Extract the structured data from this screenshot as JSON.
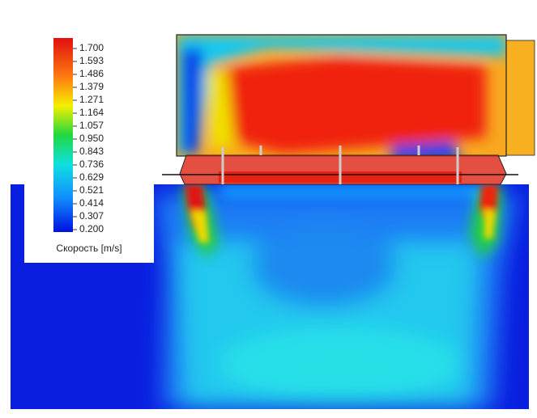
{
  "legend": {
    "ticks": [
      "1.700",
      "1.593",
      "1.486",
      "1.379",
      "1.271",
      "1.164",
      "1.057",
      "0.950",
      "0.843",
      "0.736",
      "0.629",
      "0.521",
      "0.414",
      "0.307",
      "0.200"
    ],
    "title": "Скорость [m/s]"
  }
}
